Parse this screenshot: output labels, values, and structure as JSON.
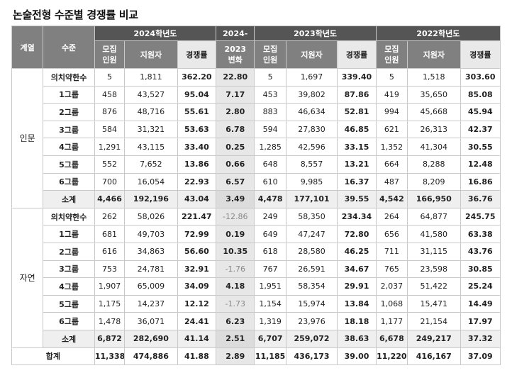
{
  "title": "논술전형 수준별 경쟁률 비교",
  "header": {
    "group_col": "계열",
    "level_col": "수준",
    "y2024": "2024학년도",
    "change_top": "2024-",
    "change_mid": "2023",
    "change_bot": "변화",
    "y2023": "2023학년도",
    "y2022": "2022학년도",
    "quota_top": "모집",
    "quota_bot": "인원",
    "applicants": "지원자",
    "ratio": "경쟁률"
  },
  "groups": [
    {
      "name": "인문",
      "rows": [
        [
          "의치약한수",
          "5",
          "1,811",
          "362.20",
          "22.80",
          "5",
          "1,697",
          "339.40",
          "5",
          "1,518",
          "303.60"
        ],
        [
          "1그룹",
          "458",
          "43,527",
          "95.04",
          "7.17",
          "453",
          "39,802",
          "87.86",
          "419",
          "35,650",
          "85.08"
        ],
        [
          "2그룹",
          "876",
          "48,716",
          "55.61",
          "2.80",
          "883",
          "46,634",
          "52.81",
          "994",
          "45,668",
          "45.94"
        ],
        [
          "3그룹",
          "584",
          "31,321",
          "53.63",
          "6.78",
          "594",
          "27,830",
          "46.85",
          "621",
          "26,313",
          "42.37"
        ],
        [
          "4그룹",
          "1,291",
          "43,115",
          "33.40",
          "0.25",
          "1,285",
          "42,596",
          "33.15",
          "1,352",
          "41,304",
          "30.55"
        ],
        [
          "5그룹",
          "552",
          "7,652",
          "13.86",
          "0.66",
          "648",
          "8,557",
          "13.21",
          "664",
          "8,288",
          "12.48"
        ],
        [
          "6그룹",
          "700",
          "16,054",
          "22.93",
          "6.57",
          "610",
          "9,985",
          "16.37",
          "487",
          "8,209",
          "16.86"
        ]
      ],
      "subtotal": [
        "소계",
        "4,466",
        "192,196",
        "43.04",
        "3.49",
        "4,478",
        "177,101",
        "39.55",
        "4,542",
        "166,950",
        "36.76"
      ]
    },
    {
      "name": "자연",
      "rows": [
        [
          "의치약한수",
          "262",
          "58,026",
          "221.47",
          "-12.86",
          "249",
          "58,350",
          "234.34",
          "264",
          "64,877",
          "245.75"
        ],
        [
          "1그룹",
          "681",
          "49,703",
          "72.99",
          "0.19",
          "649",
          "47,247",
          "72.80",
          "656",
          "41,580",
          "63.38"
        ],
        [
          "2그룹",
          "616",
          "34,863",
          "56.60",
          "10.35",
          "618",
          "28,580",
          "46.25",
          "711",
          "31,115",
          "43.76"
        ],
        [
          "3그룹",
          "753",
          "24,781",
          "32.91",
          "-1.76",
          "767",
          "26,591",
          "34.67",
          "765",
          "23,598",
          "30.85"
        ],
        [
          "4그룹",
          "1,907",
          "65,009",
          "34.09",
          "4.18",
          "1,951",
          "58,354",
          "29.91",
          "2,037",
          "51,422",
          "25.24"
        ],
        [
          "5그룹",
          "1,175",
          "14,237",
          "12.12",
          "-1.73",
          "1,154",
          "15,974",
          "13.84",
          "1,068",
          "15,471",
          "14.49"
        ],
        [
          "6그룹",
          "1,478",
          "36,071",
          "24.41",
          "6.23",
          "1,319",
          "23,976",
          "18.18",
          "1,177",
          "21,154",
          "17.97"
        ]
      ],
      "subtotal": [
        "소계",
        "6,872",
        "282,690",
        "41.14",
        "2.51",
        "6,707",
        "259,072",
        "38.63",
        "6,678",
        "249,217",
        "37.32"
      ]
    }
  ],
  "total": [
    "합계",
    "11,338",
    "474,886",
    "41.88",
    "2.89",
    "11,185",
    "436,173",
    "39.00",
    "11,220",
    "416,167",
    "37.09"
  ]
}
